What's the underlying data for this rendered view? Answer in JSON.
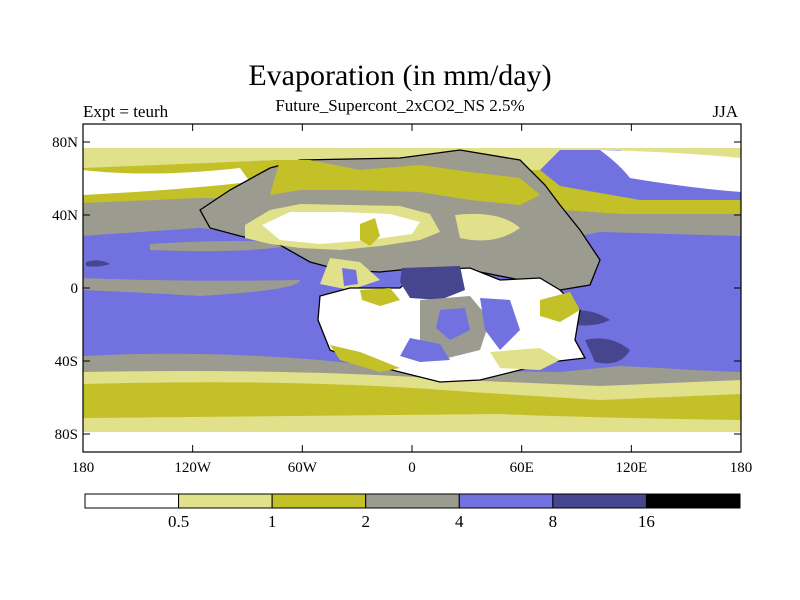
{
  "chart_data": {
    "type": "heatmap",
    "title": "Evaporation (in mm/day)",
    "subtitle": "Future_Supercont_2xCO2_NS 2.5%",
    "left_label": "Expt = teurh",
    "right_label": "JJA",
    "x_ticks": [
      "180",
      "120W",
      "60W",
      "0",
      "60E",
      "120E",
      "180"
    ],
    "y_ticks": [
      "80N",
      "40N",
      "0",
      "40S",
      "80S"
    ],
    "colorbar": {
      "colors": [
        "#ffffff",
        "#e1e08b",
        "#c3c127",
        "#9c9b8f",
        "#7172e0",
        "#46468f",
        "#000000"
      ],
      "labels": [
        "0.5",
        "1",
        "2",
        "4",
        "8",
        "16"
      ]
    }
  }
}
